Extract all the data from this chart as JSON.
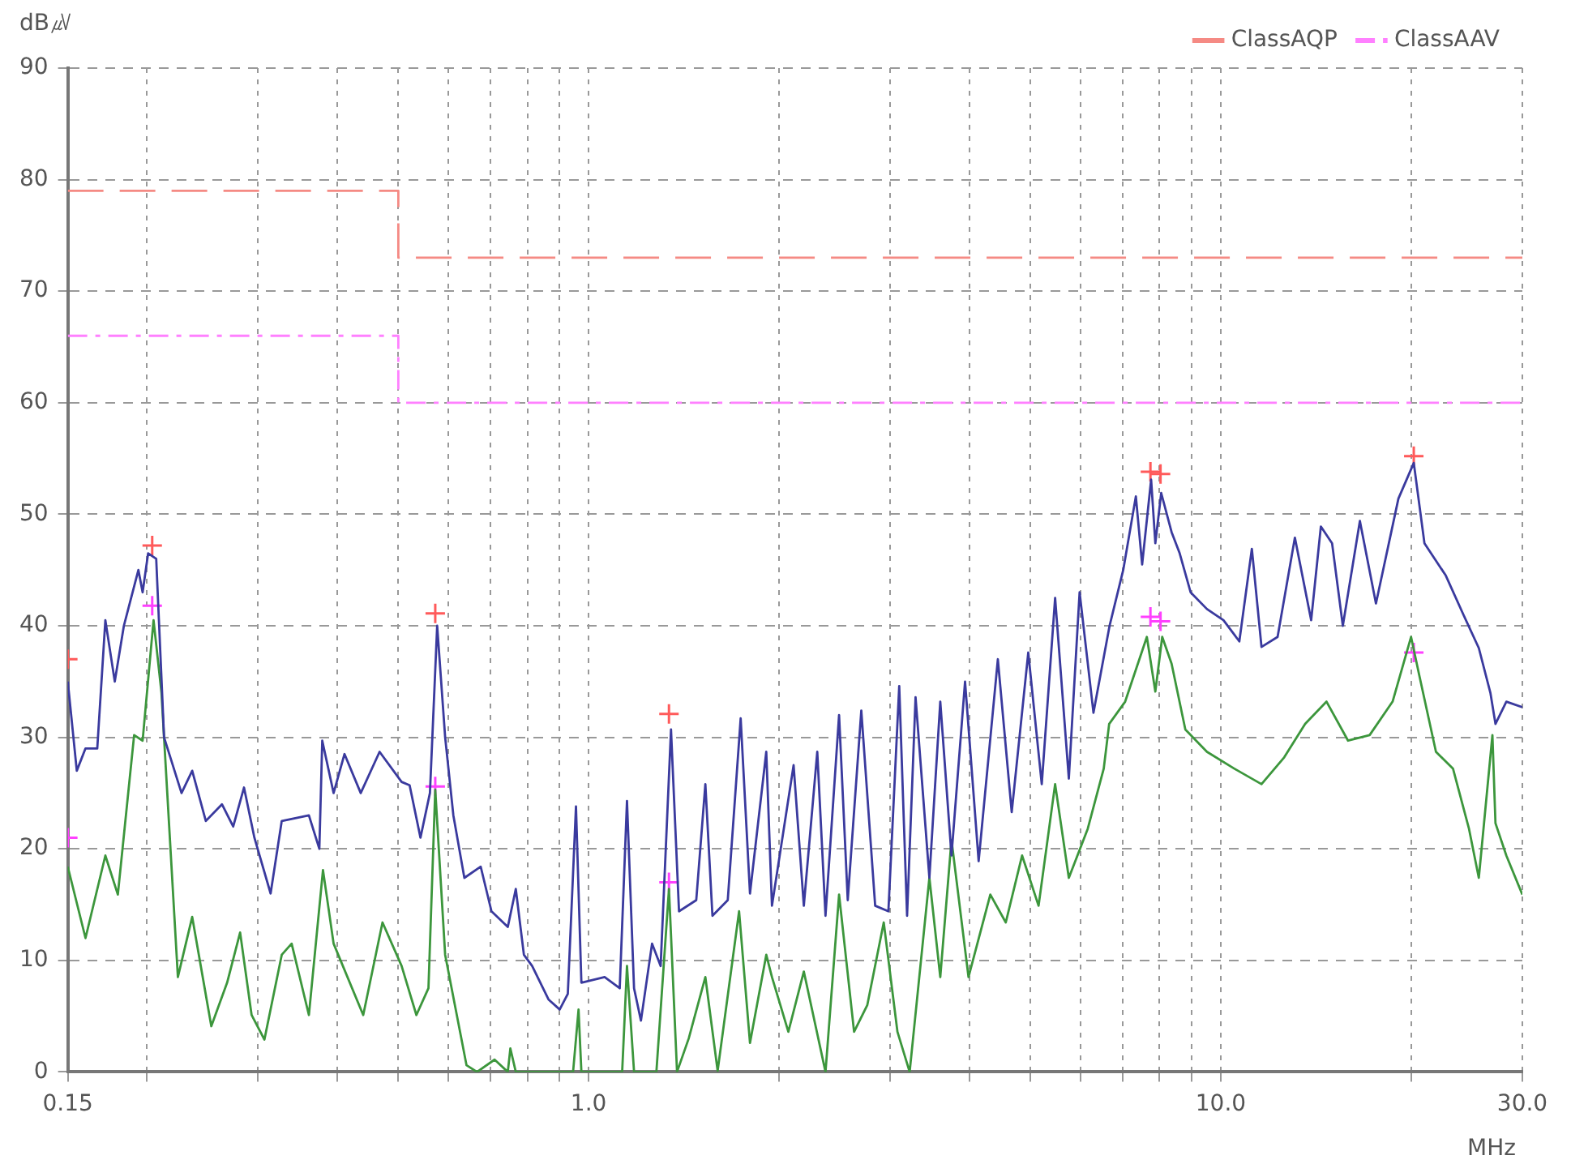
{
  "chart_data": {
    "type": "line",
    "ylabel": "dB㎶",
    "xlabel": "MHz",
    "log": "x",
    "grid": true,
    "legend": "top",
    "xlim": [
      0.15,
      30
    ],
    "xticks": [
      0.15,
      {
        "value": 0.2,
        "label": null
      },
      {
        "value": 0.3,
        "label": null
      },
      {
        "value": 0.4,
        "label": null
      },
      {
        "value": 0.5,
        "label": null
      },
      {
        "value": 0.6,
        "label": null
      },
      {
        "value": 0.7,
        "label": null
      },
      {
        "value": 0.8,
        "label": null
      },
      {
        "value": 0.9,
        "label": null
      },
      {
        "value": 1,
        "label": "1.0"
      },
      {
        "value": 2,
        "label": null
      },
      {
        "value": 3,
        "label": null
      },
      {
        "value": 4,
        "label": null
      },
      {
        "value": 5,
        "label": null
      },
      {
        "value": 6,
        "label": null
      },
      {
        "value": 7,
        "label": null
      },
      {
        "value": 8,
        "label": null
      },
      {
        "value": 9,
        "label": null
      },
      {
        "value": 10,
        "label": "10.0"
      },
      {
        "value": 20,
        "label": null
      },
      {
        "value": 30,
        "label": "30.0"
      }
    ],
    "ylim": [
      0,
      90
    ],
    "yticks": [
      0,
      10,
      20,
      30,
      40,
      50,
      60,
      70,
      80,
      90
    ],
    "series": [
      {
        "name": "ClassAQP",
        "type": "step",
        "color": "#f58a84",
        "line_style": "dashed",
        "marker": "none",
        "x": [
          0.15,
          0.5,
          30
        ],
        "values": [
          79,
          73,
          73
        ]
      },
      {
        "name": "ClassAAV",
        "type": "step",
        "color": "#ff80ff",
        "line_style": "dotted",
        "marker": "none",
        "x": [
          0.15,
          0.5,
          30
        ],
        "values": [
          66,
          60,
          60
        ]
      },
      {
        "type": "line",
        "color": "#3a3a9e",
        "line_style": "solid",
        "marker": "none",
        "x": [
          0.15,
          0.155,
          0.16,
          0.167,
          0.172,
          0.178,
          0.184,
          0.194,
          0.197,
          0.201,
          0.207,
          0.213,
          0.227,
          0.236,
          0.248,
          0.263,
          0.274,
          0.285,
          0.296,
          0.314,
          0.327,
          0.361,
          0.375,
          0.379,
          0.395,
          0.411,
          0.436,
          0.467,
          0.506,
          0.521,
          0.542,
          0.561,
          0.576,
          0.593,
          0.611,
          0.636,
          0.675,
          0.702,
          0.745,
          0.767,
          0.79,
          0.814,
          0.864,
          0.9,
          0.927,
          0.955,
          0.974,
          1.06,
          1.12,
          1.15,
          1.18,
          1.21,
          1.26,
          1.3,
          1.35,
          1.39,
          1.48,
          1.53,
          1.57,
          1.66,
          1.74,
          1.8,
          1.91,
          1.95,
          2.11,
          2.19,
          2.3,
          2.37,
          2.49,
          2.57,
          2.7,
          2.84,
          2.98,
          3.1,
          3.19,
          3.29,
          3.46,
          3.6,
          3.75,
          3.94,
          4.14,
          4.44,
          4.67,
          4.96,
          5.21,
          5.47,
          5.75,
          5.98,
          6.29,
          6.67,
          7.01,
          7.34,
          7.51,
          7.76,
          7.88,
          8.05,
          8.36,
          8.61,
          8.96,
          9.51,
          10.1,
          10.7,
          11.2,
          11.6,
          12.3,
          13.1,
          13.9,
          14.4,
          15,
          15.6,
          16.6,
          17.6,
          19.1,
          20.2,
          21,
          22.7,
          24.2,
          25.6,
          26.7,
          27.2,
          28.3,
          30
        ],
        "values": [
          35,
          27,
          29,
          29,
          40.5,
          35,
          40,
          45,
          43,
          46.5,
          46,
          30,
          25,
          27,
          22.5,
          24,
          22,
          25.5,
          21,
          16,
          22.5,
          23,
          20,
          29.7,
          25,
          28.5,
          25,
          28.7,
          26,
          25.7,
          21,
          25,
          40,
          30,
          23,
          17.4,
          18.4,
          14.4,
          13,
          16.4,
          10.5,
          9.5,
          6.5,
          5.6,
          7,
          23.8,
          8,
          8.5,
          7.5,
          24.3,
          7.5,
          4.6,
          11.5,
          9.5,
          30.7,
          14.4,
          15.4,
          25.8,
          14,
          15.4,
          31.7,
          16,
          28.7,
          14.9,
          27.5,
          14.9,
          28.7,
          14,
          32,
          15.4,
          32.4,
          14.9,
          14.4,
          34.6,
          14,
          33.6,
          17.4,
          33.2,
          19.4,
          35,
          18.9,
          37,
          23.3,
          37.6,
          25.8,
          42.5,
          26.3,
          43,
          32.2,
          40,
          45,
          51.6,
          45.5,
          53.1,
          47.4,
          51.9,
          48.4,
          46.5,
          43,
          41.5,
          40.5,
          38.6,
          46.9,
          38.1,
          39,
          47.9,
          40.5,
          48.9,
          47.4,
          40,
          49.4,
          42,
          51.4,
          54.6,
          47.4,
          44.5,
          41,
          38,
          34,
          31.2,
          33.2,
          32.7
        ]
      },
      {
        "type": "line",
        "color": "#3c963c",
        "line_style": "solid",
        "marker": "none",
        "x": [
          0.15,
          0.16,
          0.172,
          0.18,
          0.191,
          0.197,
          0.205,
          0.211,
          0.224,
          0.236,
          0.253,
          0.268,
          0.281,
          0.293,
          0.307,
          0.327,
          0.339,
          0.361,
          0.38,
          0.395,
          0.44,
          0.472,
          0.506,
          0.534,
          0.558,
          0.572,
          0.593,
          0.641,
          0.666,
          0.71,
          0.745,
          0.752,
          0.767,
          0.945,
          0.964,
          0.974,
          1.13,
          1.15,
          1.18,
          1.28,
          1.34,
          1.38,
          1.44,
          1.53,
          1.6,
          1.73,
          1.8,
          1.91,
          1.95,
          2.07,
          2.19,
          2.37,
          2.49,
          2.63,
          2.76,
          2.93,
          3.08,
          3.22,
          3.46,
          3.6,
          3.75,
          3.99,
          4.32,
          4.57,
          4.85,
          5.15,
          5.47,
          5.75,
          6.16,
          6.53,
          6.66,
          7.06,
          7.64,
          7.88,
          8.08,
          8.36,
          8.79,
          9.51,
          10.5,
          11.6,
          12.6,
          13.6,
          14.7,
          15.9,
          17.2,
          18.7,
          20,
          20.6,
          21.9,
          23.3,
          24.7,
          25.6,
          26.9,
          27.2,
          28.3,
          30
        ],
        "values": [
          18.4,
          12,
          19.4,
          15.9,
          30.2,
          29.7,
          40.5,
          34,
          8.5,
          13.9,
          4.1,
          8,
          12.5,
          5.1,
          2.9,
          10.5,
          11.5,
          5.1,
          18.1,
          11.5,
          5.1,
          13.4,
          9.5,
          5.1,
          7.5,
          25.3,
          10.5,
          0.6,
          0,
          1.1,
          0,
          2.1,
          0,
          0,
          5.6,
          0,
          0,
          9.5,
          0,
          0,
          16.4,
          0,
          3,
          8.5,
          0.1,
          14.4,
          2.6,
          10.5,
          8.5,
          3.6,
          9,
          0,
          15.9,
          3.6,
          6,
          13.4,
          3.6,
          0,
          17.4,
          8.5,
          20.8,
          8.5,
          15.9,
          13.4,
          19.4,
          14.9,
          25.8,
          17.4,
          21.8,
          27.2,
          31.2,
          33.2,
          39,
          34.1,
          39,
          36.6,
          30.7,
          28.7,
          27.2,
          25.8,
          28.2,
          31.2,
          33.2,
          29.7,
          30.2,
          33.2,
          39,
          35.6,
          28.7,
          27.2,
          21.8,
          17.4,
          30.2,
          22.3,
          19.4,
          15.9
        ]
      },
      {
        "type": "scatter",
        "color": "#ff5a5a",
        "marker": "cross",
        "x": [
          0.15,
          0.204,
          0.572,
          1.34,
          7.74,
          8.03,
          20.2
        ],
        "values": [
          37,
          47.2,
          41.1,
          32.1,
          53.8,
          53.6,
          55.2
        ]
      },
      {
        "type": "scatter",
        "color": "#ff40ff",
        "marker": "cross",
        "x": [
          0.15,
          0.204,
          0.572,
          1.34,
          7.74,
          8.03,
          20.2
        ],
        "values": [
          21,
          41.8,
          25.6,
          17,
          40.8,
          40.4,
          37.6
        ]
      }
    ]
  }
}
